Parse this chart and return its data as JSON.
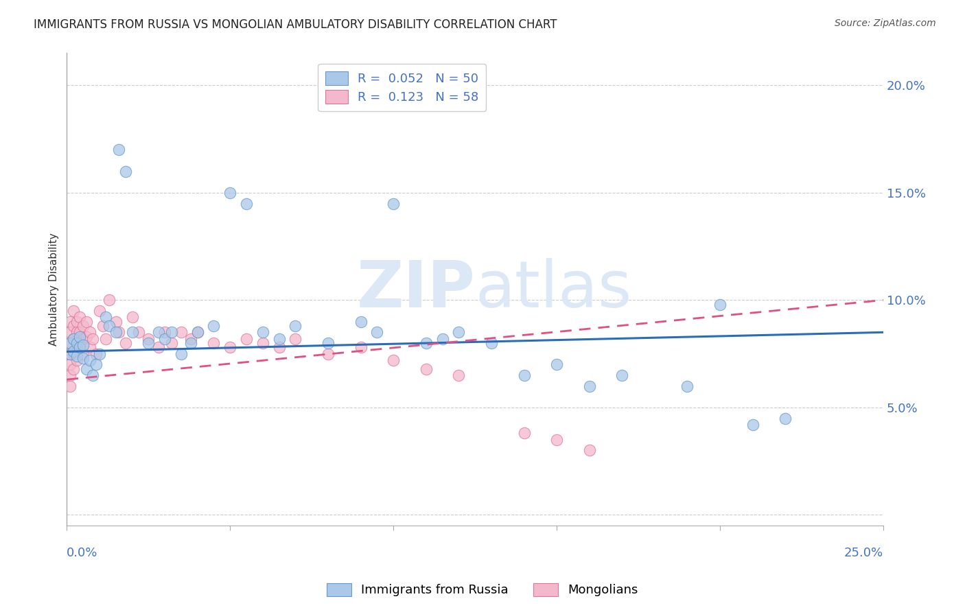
{
  "title": "IMMIGRANTS FROM RUSSIA VS MONGOLIAN AMBULATORY DISABILITY CORRELATION CHART",
  "source": "Source: ZipAtlas.com",
  "ylabel": "Ambulatory Disability",
  "yticks": [
    0.0,
    0.05,
    0.1,
    0.15,
    0.2
  ],
  "ytick_labels": [
    "",
    "5.0%",
    "10.0%",
    "15.0%",
    "20.0%"
  ],
  "xlim": [
    0.0,
    0.25
  ],
  "ylim": [
    -0.005,
    0.215
  ],
  "legend_entries": [
    {
      "label": "R =  0.052   N = 50"
    },
    {
      "label": "R =  0.123   N = 58"
    }
  ],
  "scatter_blue": {
    "x": [
      0.001,
      0.001,
      0.002,
      0.002,
      0.003,
      0.003,
      0.004,
      0.004,
      0.005,
      0.005,
      0.006,
      0.007,
      0.008,
      0.009,
      0.01,
      0.012,
      0.013,
      0.015,
      0.016,
      0.018,
      0.02,
      0.025,
      0.028,
      0.03,
      0.032,
      0.035,
      0.038,
      0.04,
      0.045,
      0.05,
      0.055,
      0.06,
      0.065,
      0.07,
      0.08,
      0.09,
      0.095,
      0.1,
      0.11,
      0.115,
      0.12,
      0.13,
      0.14,
      0.15,
      0.16,
      0.17,
      0.19,
      0.2,
      0.21,
      0.22
    ],
    "y": [
      0.075,
      0.08,
      0.076,
      0.082,
      0.08,
      0.074,
      0.083,
      0.078,
      0.073,
      0.079,
      0.068,
      0.072,
      0.065,
      0.07,
      0.075,
      0.092,
      0.088,
      0.085,
      0.17,
      0.16,
      0.085,
      0.08,
      0.085,
      0.082,
      0.085,
      0.075,
      0.08,
      0.085,
      0.088,
      0.15,
      0.145,
      0.085,
      0.082,
      0.088,
      0.08,
      0.09,
      0.085,
      0.145,
      0.08,
      0.082,
      0.085,
      0.08,
      0.065,
      0.07,
      0.06,
      0.065,
      0.06,
      0.098,
      0.042,
      0.045
    ]
  },
  "scatter_pink": {
    "x": [
      0.001,
      0.001,
      0.001,
      0.001,
      0.001,
      0.001,
      0.001,
      0.002,
      0.002,
      0.002,
      0.002,
      0.002,
      0.003,
      0.003,
      0.003,
      0.003,
      0.004,
      0.004,
      0.004,
      0.005,
      0.005,
      0.005,
      0.006,
      0.006,
      0.007,
      0.007,
      0.008,
      0.009,
      0.01,
      0.011,
      0.012,
      0.013,
      0.015,
      0.016,
      0.018,
      0.02,
      0.022,
      0.025,
      0.028,
      0.03,
      0.032,
      0.035,
      0.038,
      0.04,
      0.045,
      0.05,
      0.055,
      0.06,
      0.065,
      0.07,
      0.08,
      0.09,
      0.1,
      0.11,
      0.12,
      0.14,
      0.15,
      0.16
    ],
    "y": [
      0.09,
      0.085,
      0.08,
      0.075,
      0.07,
      0.065,
      0.06,
      0.095,
      0.088,
      0.082,
      0.075,
      0.068,
      0.09,
      0.085,
      0.078,
      0.072,
      0.092,
      0.085,
      0.078,
      0.088,
      0.082,
      0.075,
      0.09,
      0.083,
      0.085,
      0.078,
      0.082,
      0.075,
      0.095,
      0.088,
      0.082,
      0.1,
      0.09,
      0.085,
      0.08,
      0.092,
      0.085,
      0.082,
      0.078,
      0.085,
      0.08,
      0.085,
      0.082,
      0.085,
      0.08,
      0.078,
      0.082,
      0.08,
      0.078,
      0.082,
      0.075,
      0.078,
      0.072,
      0.068,
      0.065,
      0.038,
      0.035,
      0.03
    ]
  },
  "trendline_blue": {
    "x": [
      0.0,
      0.25
    ],
    "y": [
      0.076,
      0.085
    ],
    "color": "#2b6cb8",
    "linestyle": "solid",
    "linewidth": 2.2
  },
  "trendline_pink": {
    "x": [
      0.0,
      0.25
    ],
    "y": [
      0.063,
      0.1
    ],
    "color": "#e05080",
    "linestyle": "dashed",
    "linewidth": 2.0,
    "dashes": [
      6,
      4
    ]
  },
  "scatter_color_blue": "#aac8e8",
  "scatter_color_pink": "#f4b8cc",
  "scatter_edgecolor_blue": "#6699cc",
  "scatter_edgecolor_pink": "#dd7799",
  "watermark_zip": "ZIP",
  "watermark_atlas": "atlas",
  "watermark_color": "#dce8f5",
  "background_color": "#ffffff",
  "grid_color": "#cccccc",
  "title_color": "#222222",
  "axis_label_color": "#333333",
  "tick_label_color": "#4472c4",
  "title_fontsize": 12,
  "source_fontsize": 10,
  "legend_color_blue": "#4472c4",
  "legend_color_pink": "#e87fa0"
}
